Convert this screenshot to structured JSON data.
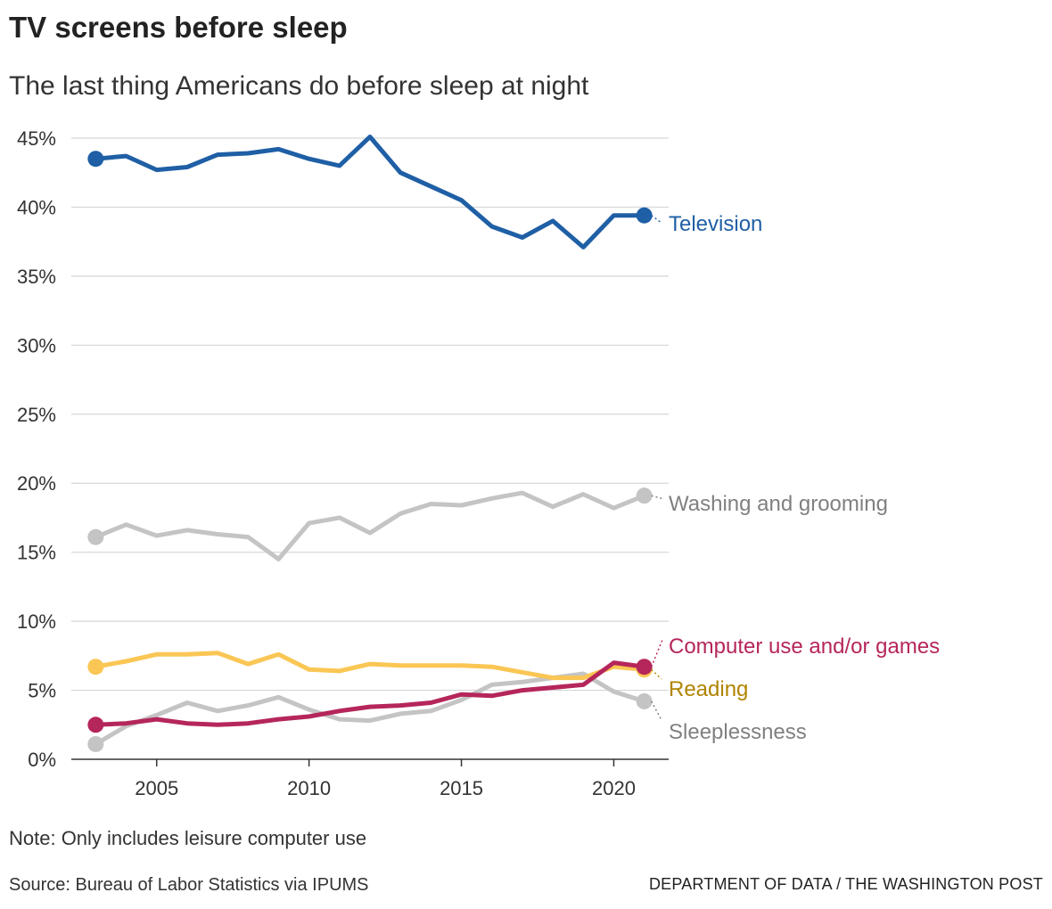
{
  "header": {
    "title": "TV screens before sleep",
    "subtitle": "The last thing Americans do before sleep at night"
  },
  "footer": {
    "note": "Note: Only includes leisure computer use",
    "source": "Source: Bureau of Labor Statistics via IPUMS",
    "credit": "DEPARTMENT OF DATA / THE WASHINGTON POST"
  },
  "chart_data": {
    "type": "line",
    "title": "TV screens before sleep",
    "subtitle": "The last thing Americans do before sleep at night",
    "xlabel": "",
    "ylabel": "",
    "xlim": [
      2002.2,
      2021.8
    ],
    "ylim": [
      0,
      45
    ],
    "x_ticks": [
      2005,
      2010,
      2015,
      2020
    ],
    "y_ticks": [
      0,
      5,
      10,
      15,
      20,
      25,
      30,
      35,
      40,
      45
    ],
    "y_tick_labels": [
      "0%",
      "5%",
      "10%",
      "15%",
      "20%",
      "25%",
      "30%",
      "35%",
      "40%",
      "45%"
    ],
    "grid": true,
    "legend": "direct labels at line ends, right side",
    "x": [
      2003,
      2004,
      2005,
      2006,
      2007,
      2008,
      2009,
      2010,
      2011,
      2012,
      2013,
      2014,
      2015,
      2016,
      2017,
      2018,
      2019,
      2020,
      2021
    ],
    "series": [
      {
        "name": "Television",
        "color": "#1f5fa5",
        "label_color": "#1f5fa5",
        "values": [
          43.5,
          43.7,
          42.7,
          42.9,
          43.8,
          43.9,
          44.2,
          43.5,
          43.0,
          45.1,
          42.5,
          41.5,
          40.5,
          38.6,
          37.8,
          39.0,
          37.1,
          39.4,
          39.4
        ]
      },
      {
        "name": "Washing and grooming",
        "color": "#c4c4c4",
        "label_color": "#808080",
        "values": [
          16.1,
          17.0,
          16.2,
          16.6,
          16.3,
          16.1,
          14.5,
          17.1,
          17.5,
          16.4,
          17.8,
          18.5,
          18.4,
          18.9,
          19.3,
          18.3,
          19.2,
          18.2,
          19.1
        ]
      },
      {
        "name": "Sleeplessness",
        "color": "#c4c4c4",
        "label_color": "#808080",
        "values": [
          1.1,
          2.4,
          3.2,
          4.1,
          3.5,
          3.9,
          4.5,
          3.6,
          2.9,
          2.8,
          3.3,
          3.5,
          4.3,
          5.4,
          5.6,
          5.9,
          6.2,
          4.9,
          4.2
        ]
      },
      {
        "name": "Reading",
        "color": "#fac654",
        "label_color": "#b08400",
        "values": [
          6.7,
          7.1,
          7.6,
          7.6,
          7.7,
          6.9,
          7.6,
          6.5,
          6.4,
          6.9,
          6.8,
          6.8,
          6.8,
          6.7,
          6.3,
          5.9,
          5.9,
          6.7,
          6.5
        ]
      },
      {
        "name": "Computer use and/or games",
        "color": "#b5265b",
        "label_color": "#b5265b",
        "values": [
          2.5,
          2.6,
          2.9,
          2.6,
          2.5,
          2.6,
          2.9,
          3.1,
          3.5,
          3.8,
          3.9,
          4.1,
          4.7,
          4.6,
          5.0,
          5.2,
          5.4,
          7.0,
          6.7
        ]
      }
    ]
  }
}
